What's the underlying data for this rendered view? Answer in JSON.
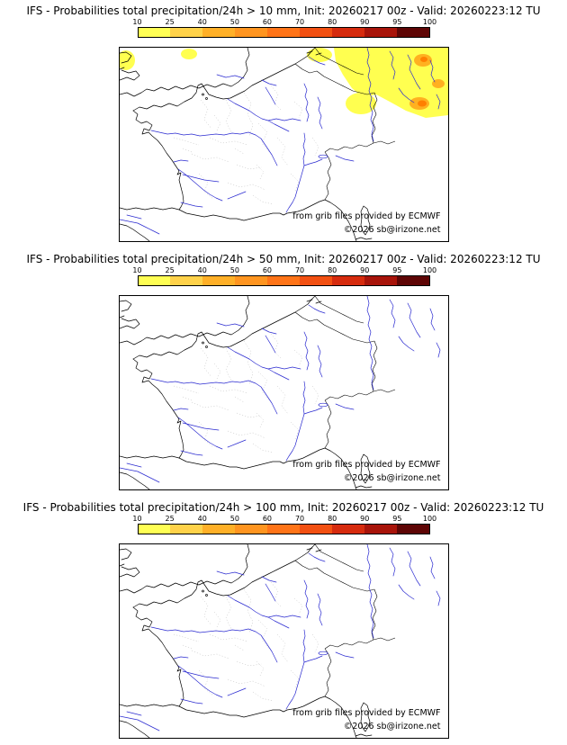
{
  "page": {
    "background": "#ffffff"
  },
  "colorbar": {
    "unit": "%",
    "labels": [
      "10",
      "25",
      "40",
      "50",
      "60",
      "70",
      "80",
      "90",
      "95",
      "100"
    ],
    "colors": [
      "#ffff54",
      "#ffd24a",
      "#ffb028",
      "#ff9520",
      "#ff7418",
      "#f25012",
      "#d62b0e",
      "#a8140a",
      "#5e0505"
    ]
  },
  "panels": [
    {
      "title": "IFS - Probabilities total precipitation/24h > 10 mm, Init: 20260217 00z - Valid: 20260223:12 TU",
      "threshold": "10 mm",
      "attribution": {
        "line1": "from grib files provided by ECMWF",
        "line2": "©2026 sb@irizone.net"
      }
    },
    {
      "title": "IFS - Probabilities total precipitation/24h > 50 mm, Init: 20260217 00z - Valid: 20260223:12 TU",
      "threshold": "50 mm",
      "attribution": {
        "line1": "from grib files provided by ECMWF",
        "line2": "©2026 sb@irizone.net"
      }
    },
    {
      "title": "IFS - Probabilities total precipitation/24h > 100 mm, Init: 20260217 00z - Valid: 20260223:12 TU",
      "threshold": "100 mm",
      "attribution": {
        "line1": "from grib files provided by ECMWF",
        "line2": "©2026 sb@irizone.net"
      }
    }
  ]
}
